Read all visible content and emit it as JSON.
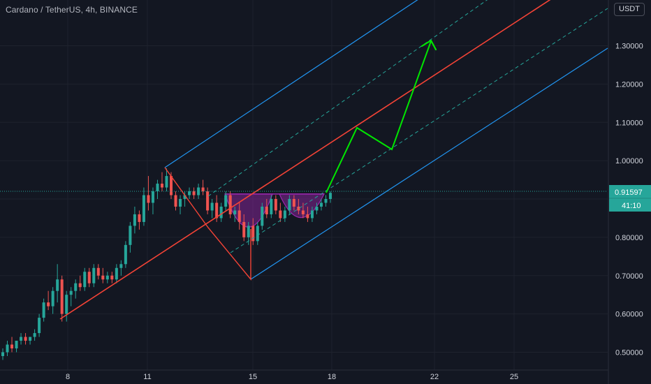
{
  "header": {
    "title": "Cardano / TetherUS, 4h, BINANCE",
    "currency": "USDT"
  },
  "colors": {
    "background": "#131722",
    "grid": "#1e222d",
    "up": "#26a69a",
    "down": "#ef5350",
    "channel_outer": "#2196f3",
    "channel_mid": "#f44336",
    "channel_dashed": "#26a69a",
    "pattern_fill": "#9c27b0",
    "projection": "#00e600",
    "zigzag": "#f44336"
  },
  "chart_data": {
    "type": "candlestick",
    "title": "Cardano / TetherUS, 4h, BINANCE",
    "xlabel": "",
    "ylabel": "",
    "x_ticks": [
      "8",
      "11",
      "15",
      "18",
      "22",
      "25"
    ],
    "y_ticks": [
      "0.50000",
      "0.60000",
      "0.70000",
      "0.80000",
      "0.90000",
      "1.00000",
      "1.10000",
      "1.20000",
      "1.30000"
    ],
    "ylim": [
      0.475,
      1.49
    ],
    "last_price": "0.91597",
    "countdown": "41:10",
    "grid": true,
    "candles": [
      [
        0.49,
        0.51,
        0.48,
        0.5
      ],
      [
        0.5,
        0.53,
        0.49,
        0.52
      ],
      [
        0.52,
        0.54,
        0.5,
        0.51
      ],
      [
        0.51,
        0.53,
        0.5,
        0.53
      ],
      [
        0.53,
        0.55,
        0.52,
        0.54
      ],
      [
        0.54,
        0.55,
        0.52,
        0.53
      ],
      [
        0.53,
        0.54,
        0.52,
        0.54
      ],
      [
        0.54,
        0.56,
        0.53,
        0.55
      ],
      [
        0.55,
        0.6,
        0.54,
        0.59
      ],
      [
        0.59,
        0.64,
        0.58,
        0.63
      ],
      [
        0.63,
        0.66,
        0.61,
        0.62
      ],
      [
        0.62,
        0.67,
        0.6,
        0.66
      ],
      [
        0.66,
        0.73,
        0.63,
        0.69
      ],
      [
        0.69,
        0.7,
        0.58,
        0.6
      ],
      [
        0.6,
        0.66,
        0.58,
        0.65
      ],
      [
        0.65,
        0.67,
        0.62,
        0.66
      ],
      [
        0.66,
        0.69,
        0.64,
        0.68
      ],
      [
        0.68,
        0.7,
        0.66,
        0.67
      ],
      [
        0.67,
        0.72,
        0.66,
        0.71
      ],
      [
        0.71,
        0.72,
        0.67,
        0.68
      ],
      [
        0.68,
        0.73,
        0.67,
        0.72
      ],
      [
        0.72,
        0.73,
        0.69,
        0.7
      ],
      [
        0.7,
        0.72,
        0.68,
        0.69
      ],
      [
        0.69,
        0.71,
        0.68,
        0.7
      ],
      [
        0.7,
        0.71,
        0.68,
        0.69
      ],
      [
        0.69,
        0.73,
        0.68,
        0.72
      ],
      [
        0.72,
        0.74,
        0.7,
        0.73
      ],
      [
        0.73,
        0.79,
        0.72,
        0.78
      ],
      [
        0.78,
        0.84,
        0.76,
        0.83
      ],
      [
        0.83,
        0.88,
        0.81,
        0.86
      ],
      [
        0.86,
        0.87,
        0.82,
        0.84
      ],
      [
        0.84,
        0.93,
        0.83,
        0.91
      ],
      [
        0.91,
        0.96,
        0.87,
        0.89
      ],
      [
        0.89,
        0.93,
        0.86,
        0.92
      ],
      [
        0.92,
        0.95,
        0.9,
        0.94
      ],
      [
        0.94,
        0.97,
        0.92,
        0.93
      ],
      [
        0.93,
        0.98,
        0.92,
        0.96
      ],
      [
        0.96,
        0.97,
        0.9,
        0.91
      ],
      [
        0.91,
        0.92,
        0.87,
        0.88
      ],
      [
        0.88,
        0.91,
        0.86,
        0.9
      ],
      [
        0.9,
        0.92,
        0.88,
        0.91
      ],
      [
        0.91,
        0.93,
        0.9,
        0.92
      ],
      [
        0.92,
        0.93,
        0.9,
        0.91
      ],
      [
        0.91,
        0.94,
        0.9,
        0.93
      ],
      [
        0.93,
        0.95,
        0.91,
        0.92
      ],
      [
        0.92,
        0.93,
        0.86,
        0.87
      ],
      [
        0.87,
        0.9,
        0.85,
        0.89
      ],
      [
        0.89,
        0.91,
        0.84,
        0.85
      ],
      [
        0.85,
        0.89,
        0.84,
        0.88
      ],
      [
        0.88,
        0.92,
        0.87,
        0.91
      ],
      [
        0.91,
        0.92,
        0.85,
        0.86
      ],
      [
        0.86,
        0.88,
        0.84,
        0.87
      ],
      [
        0.87,
        0.89,
        0.82,
        0.84
      ],
      [
        0.84,
        0.86,
        0.79,
        0.8
      ],
      [
        0.8,
        0.84,
        0.78,
        0.83
      ],
      [
        0.83,
        0.85,
        0.78,
        0.79
      ],
      [
        0.79,
        0.84,
        0.78,
        0.83
      ],
      [
        0.83,
        0.89,
        0.82,
        0.88
      ],
      [
        0.88,
        0.9,
        0.85,
        0.86
      ],
      [
        0.86,
        0.91,
        0.85,
        0.9
      ],
      [
        0.9,
        0.91,
        0.86,
        0.87
      ],
      [
        0.87,
        0.89,
        0.84,
        0.85
      ],
      [
        0.85,
        0.88,
        0.84,
        0.87
      ],
      [
        0.87,
        0.91,
        0.86,
        0.9
      ],
      [
        0.9,
        0.91,
        0.87,
        0.88
      ],
      [
        0.88,
        0.9,
        0.86,
        0.87
      ],
      [
        0.87,
        0.89,
        0.85,
        0.86
      ],
      [
        0.86,
        0.88,
        0.84,
        0.85
      ],
      [
        0.85,
        0.88,
        0.84,
        0.87
      ],
      [
        0.87,
        0.89,
        0.86,
        0.88
      ],
      [
        0.88,
        0.9,
        0.87,
        0.89
      ],
      [
        0.89,
        0.91,
        0.88,
        0.9
      ],
      [
        0.9,
        0.92,
        0.89,
        0.916
      ]
    ]
  }
}
